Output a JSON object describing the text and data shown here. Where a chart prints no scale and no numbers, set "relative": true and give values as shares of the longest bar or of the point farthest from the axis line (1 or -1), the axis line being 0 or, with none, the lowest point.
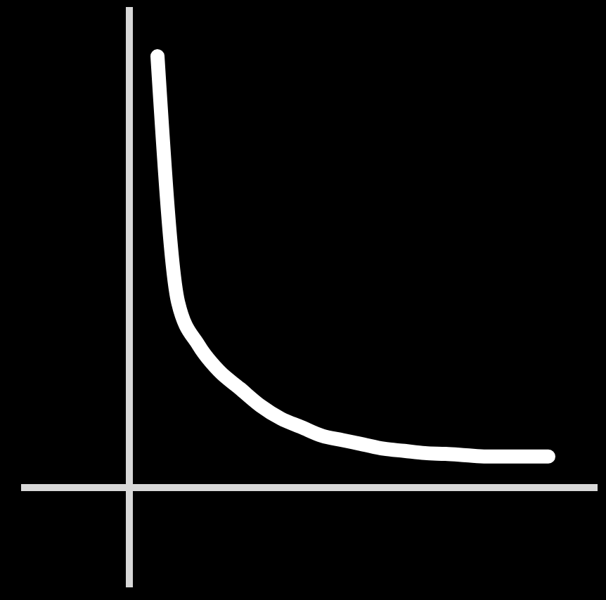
{
  "chart_data": {
    "type": "line",
    "relative": true,
    "categories": [
      null,
      null,
      null,
      null,
      null,
      null,
      null,
      null,
      null,
      null,
      null,
      null,
      null,
      null,
      null,
      null,
      null,
      null,
      null,
      null
    ],
    "series": [
      {
        "color": "#ffffff",
        "values": [
          1,
          0.43,
          0.33,
          0.27,
          0.23,
          0.19,
          0.16,
          0.14,
          0.12,
          0.11,
          0.1,
          0.09,
          0.085,
          0.08,
          0.078,
          0.075,
          0.072,
          0.072,
          0.072,
          0.072
        ]
      }
    ]
  }
}
